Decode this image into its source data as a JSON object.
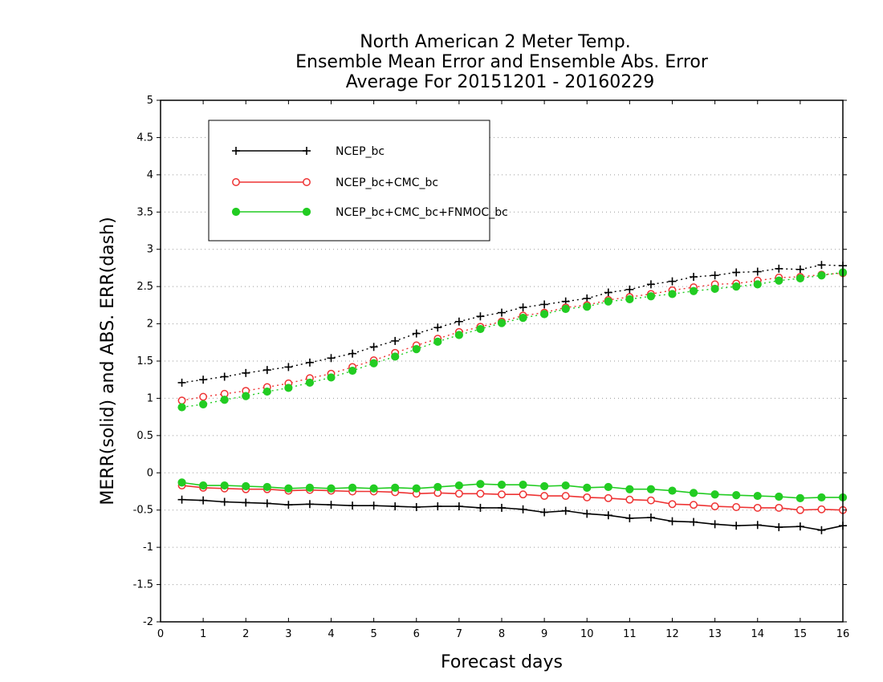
{
  "chart_data": {
    "type": "line",
    "title_lines": [
      "North American 2 Meter Temp.",
      "Ensemble Mean Error and Ensemble Abs. Error",
      "Average For 20151201 - 20160229"
    ],
    "xlabel": "Forecast days",
    "ylabel": "MERR(solid) and ABS. ERR(dash)",
    "xlim": [
      0,
      16
    ],
    "ylim": [
      -2,
      5
    ],
    "xticks": [
      0,
      1,
      2,
      3,
      4,
      5,
      6,
      7,
      8,
      9,
      10,
      11,
      12,
      13,
      14,
      15,
      16
    ],
    "yticks": [
      -2,
      -1.5,
      -1,
      -0.5,
      0,
      0.5,
      1,
      1.5,
      2,
      2.5,
      3,
      3.5,
      4,
      4.5,
      5
    ],
    "ytick_labels": [
      "-2",
      "-1.5",
      "-1",
      "-0.5",
      "0",
      "0.5",
      "1",
      "1.5",
      "2",
      "2.5",
      "3",
      "3.5",
      "4",
      "4.5",
      "5"
    ],
    "grid": true,
    "legend_position": "top-left",
    "x": [
      0.5,
      1,
      1.5,
      2,
      2.5,
      3,
      3.5,
      4,
      4.5,
      5,
      5.5,
      6,
      6.5,
      7,
      7.5,
      8,
      8.5,
      9,
      9.5,
      10,
      10.5,
      11,
      11.5,
      12,
      12.5,
      13,
      13.5,
      14,
      14.5,
      15,
      15.5,
      16
    ],
    "series": [
      {
        "name": "NCEP_bc",
        "color": "#000000",
        "marker": "plus",
        "merr": [
          -0.36,
          -0.37,
          -0.39,
          -0.4,
          -0.41,
          -0.43,
          -0.42,
          -0.43,
          -0.44,
          -0.44,
          -0.45,
          -0.46,
          -0.45,
          -0.45,
          -0.47,
          -0.47,
          -0.49,
          -0.53,
          -0.51,
          -0.55,
          -0.57,
          -0.61,
          -0.6,
          -0.65,
          -0.66,
          -0.69,
          -0.71,
          -0.7,
          -0.73,
          -0.72,
          -0.77,
          -0.71
        ],
        "abs_err": [
          1.21,
          1.25,
          1.29,
          1.34,
          1.38,
          1.42,
          1.48,
          1.54,
          1.6,
          1.69,
          1.77,
          1.87,
          1.95,
          2.03,
          2.1,
          2.15,
          2.22,
          2.26,
          2.3,
          2.34,
          2.42,
          2.46,
          2.53,
          2.57,
          2.63,
          2.65,
          2.69,
          2.7,
          2.74,
          2.73,
          2.79,
          2.78
        ]
      },
      {
        "name": "NCEP_bc+CMC_bc",
        "color": "#ee3333",
        "marker": "open-circle",
        "merr": [
          -0.17,
          -0.2,
          -0.21,
          -0.22,
          -0.22,
          -0.24,
          -0.23,
          -0.24,
          -0.25,
          -0.25,
          -0.26,
          -0.28,
          -0.27,
          -0.28,
          -0.28,
          -0.29,
          -0.29,
          -0.31,
          -0.31,
          -0.33,
          -0.34,
          -0.36,
          -0.37,
          -0.42,
          -0.43,
          -0.45,
          -0.46,
          -0.47,
          -0.47,
          -0.5,
          -0.49,
          -0.5
        ],
        "abs_err": [
          0.97,
          1.02,
          1.06,
          1.1,
          1.15,
          1.2,
          1.27,
          1.33,
          1.42,
          1.51,
          1.61,
          1.71,
          1.8,
          1.89,
          1.96,
          2.03,
          2.11,
          2.15,
          2.22,
          2.25,
          2.32,
          2.36,
          2.4,
          2.45,
          2.49,
          2.53,
          2.54,
          2.58,
          2.62,
          2.63,
          2.66,
          2.68
        ]
      },
      {
        "name": "NCEP_bc+CMC_bc+FNMOC_bc",
        "color": "#22cc22",
        "marker": "filled-circle",
        "merr": [
          -0.13,
          -0.17,
          -0.17,
          -0.18,
          -0.19,
          -0.21,
          -0.2,
          -0.21,
          -0.2,
          -0.21,
          -0.2,
          -0.21,
          -0.19,
          -0.17,
          -0.15,
          -0.16,
          -0.16,
          -0.18,
          -0.17,
          -0.2,
          -0.19,
          -0.22,
          -0.22,
          -0.24,
          -0.27,
          -0.29,
          -0.3,
          -0.31,
          -0.32,
          -0.34,
          -0.33,
          -0.33
        ],
        "abs_err": [
          0.88,
          0.92,
          0.98,
          1.03,
          1.09,
          1.14,
          1.21,
          1.28,
          1.37,
          1.47,
          1.56,
          1.66,
          1.76,
          1.85,
          1.93,
          2.01,
          2.08,
          2.13,
          2.2,
          2.23,
          2.3,
          2.33,
          2.37,
          2.4,
          2.44,
          2.47,
          2.5,
          2.53,
          2.58,
          2.61,
          2.65,
          2.69
        ]
      }
    ]
  }
}
